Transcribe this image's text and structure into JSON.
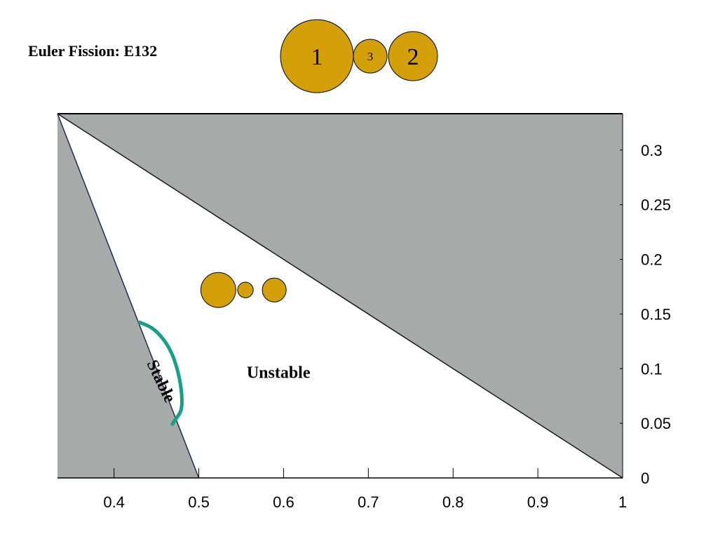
{
  "chart_data": {
    "type": "area",
    "title": "Euler Fission: E132",
    "xlabel": "",
    "ylabel": "",
    "xlim": [
      0.3333,
      1.0
    ],
    "ylim": [
      0,
      0.3333
    ],
    "x_ticks": [
      0.4,
      0.5,
      0.6,
      0.7,
      0.8,
      0.9,
      1
    ],
    "x_tick_labels": [
      "0.4",
      "0.5",
      "0.6",
      "0.7",
      "0.8",
      "0.9",
      "1"
    ],
    "y_ticks": [
      0,
      0.05,
      0.1,
      0.15,
      0.2,
      0.25,
      0.3
    ],
    "y_tick_labels": [
      "0",
      "0.05",
      "0.1",
      "0.15",
      "0.2",
      "0.25",
      "0.3"
    ],
    "y_axis_side": "right",
    "grid": false,
    "legend": "none",
    "regions": [
      {
        "name": "excluded-upper",
        "color": "#a7aaa8",
        "points": [
          [
            0.3333,
            0.3333
          ],
          [
            1.0,
            0.3333
          ],
          [
            1.0,
            0.0
          ]
        ]
      },
      {
        "name": "excluded-left",
        "color": "#a7aaa8",
        "points": [
          [
            0.3333,
            0.3333
          ],
          [
            0.3333,
            0.0
          ],
          [
            0.5,
            0.0
          ]
        ]
      }
    ],
    "boundary_lines": [
      {
        "name": "upper-boundary",
        "points": [
          [
            0.3333,
            0.3333
          ],
          [
            1.0,
            0.0
          ]
        ],
        "color": "#1a1a1a"
      },
      {
        "name": "left-boundary",
        "points": [
          [
            0.3333,
            0.3333
          ],
          [
            0.5,
            0.0
          ]
        ],
        "color": "#1a2e55"
      }
    ],
    "series": [
      {
        "name": "",
        "color": "#16a085",
        "x": [
          0.429,
          0.445,
          0.458,
          0.468,
          0.475,
          0.479,
          0.48,
          0.478,
          0.471,
          0.468
        ],
        "y": [
          0.1428,
          0.137,
          0.127,
          0.114,
          0.098,
          0.082,
          0.068,
          0.06,
          0.052,
          0.048
        ]
      }
    ],
    "annotations": [
      {
        "text": "Stable",
        "x": 0.454,
        "y": 0.088,
        "rotation": 64
      },
      {
        "text": "Unstable",
        "x": 0.594,
        "y": 0.095,
        "rotation": 0
      }
    ],
    "inset_icon": {
      "color": "#d4a00a",
      "circles": [
        {
          "x": 0.523,
          "y": 0.172,
          "r": 0.0206
        },
        {
          "x": 0.555,
          "y": 0.172,
          "r": 0.0092
        },
        {
          "x": 0.589,
          "y": 0.172,
          "r": 0.0141
        }
      ]
    }
  },
  "header_icon": {
    "color": "#d4a00a",
    "labels": [
      "1",
      "3",
      "2"
    ]
  }
}
